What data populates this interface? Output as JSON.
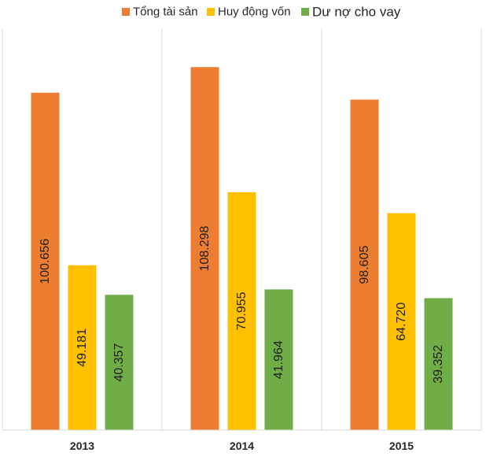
{
  "chart_data": {
    "type": "bar",
    "categories": [
      "2013",
      "2014",
      "2015"
    ],
    "series": [
      {
        "name": "Tổng tài sản",
        "color": "#ED7D31",
        "values": [
          100.656,
          108.298,
          98.605
        ],
        "labels": [
          "100.656",
          "108.298",
          "98.605"
        ]
      },
      {
        "name": "Huy động vốn",
        "color": "#FFC000",
        "values": [
          49.181,
          70.955,
          64.72
        ],
        "labels": [
          "49.181",
          "70.955",
          "64.720"
        ]
      },
      {
        "name": "Dư nợ cho vay",
        "color": "#70AD47",
        "values": [
          40.357,
          41.964,
          39.352
        ],
        "labels": [
          "40.357",
          "41.964",
          "39.352"
        ]
      }
    ],
    "title": "",
    "xlabel": "",
    "ylabel": "",
    "ylim": [
      0,
      110
    ],
    "grid": "vertical separators between categories",
    "legend_position": "top",
    "data_labels": "inside bars, rotated vertical"
  }
}
